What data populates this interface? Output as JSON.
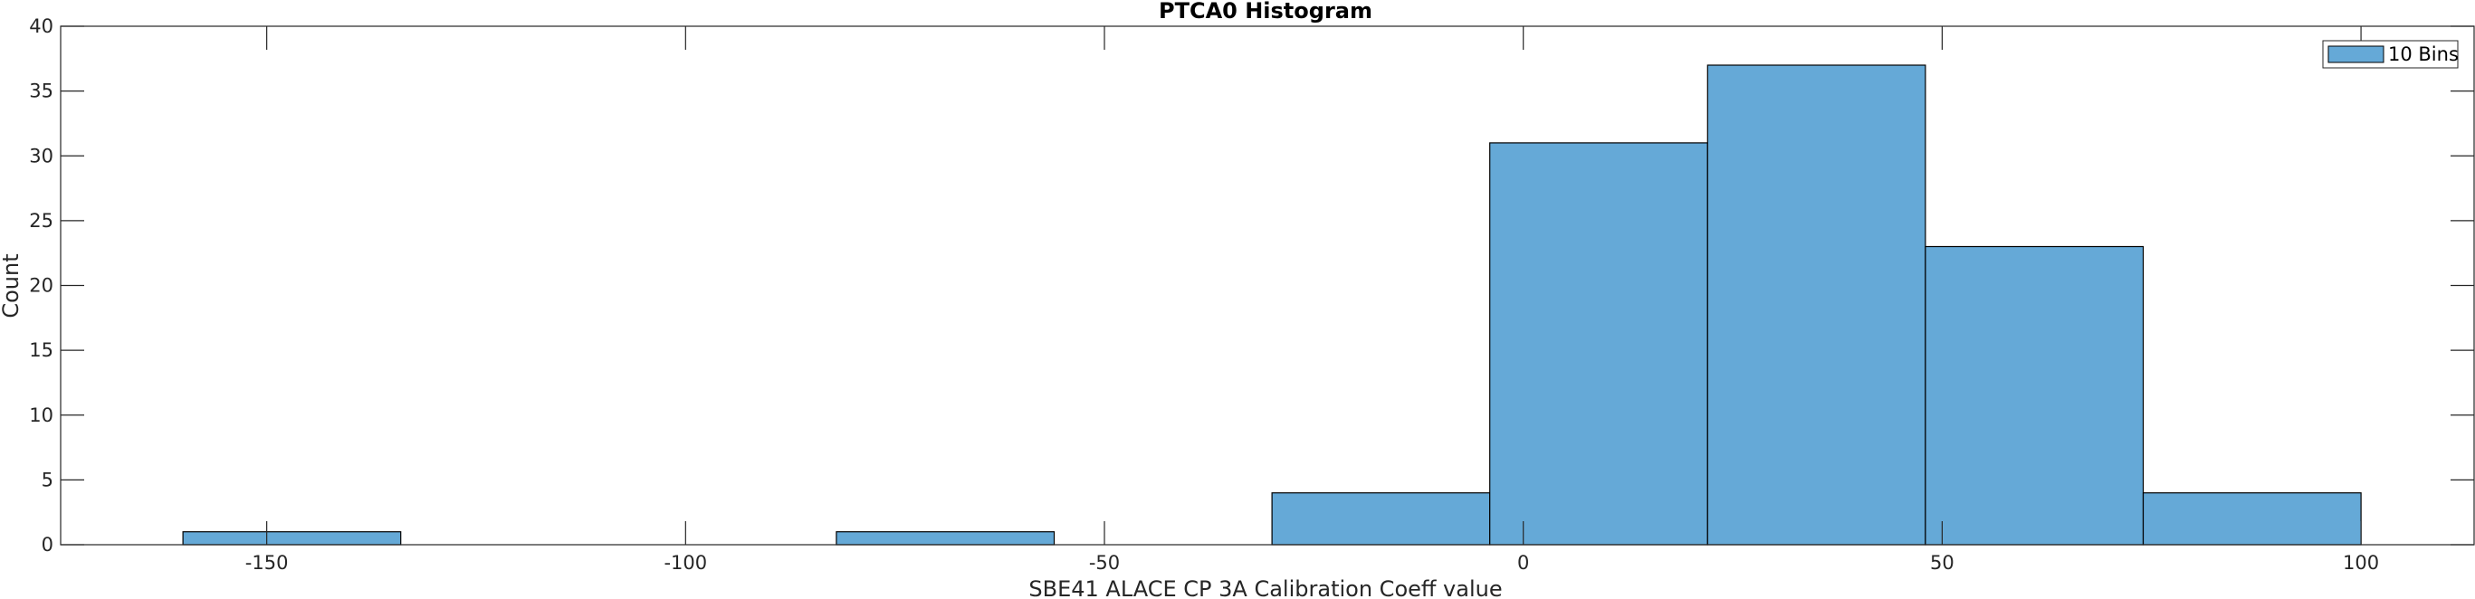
{
  "chart_data": {
    "type": "bar",
    "title": "PTCA0 Histogram",
    "xlabel": "SBE41 ALACE CP 3A Calibration Coeff value",
    "ylabel": "Count",
    "xlim": [
      -174.6,
      113.5
    ],
    "ylim": [
      0,
      40
    ],
    "xticks": [
      -150,
      -100,
      -50,
      0,
      50,
      100
    ],
    "xtick_labels": [
      "-150",
      "-100",
      "-50",
      "0",
      "50",
      "100"
    ],
    "yticks": [
      0,
      5,
      10,
      15,
      20,
      25,
      30,
      35,
      40
    ],
    "ytick_labels": [
      "0",
      "5",
      "10",
      "15",
      "20",
      "25",
      "30",
      "35",
      "40"
    ],
    "bin_edges": [
      -160,
      -134,
      -108,
      -82,
      -56,
      -30,
      -4,
      22,
      48,
      74,
      100
    ],
    "values": [
      1,
      0,
      0,
      1,
      0,
      4,
      31,
      37,
      23,
      4
    ],
    "series": [
      {
        "name": "10 Bins",
        "color": "#65a9d7"
      }
    ],
    "legend_position": "top-right",
    "grid": false
  }
}
